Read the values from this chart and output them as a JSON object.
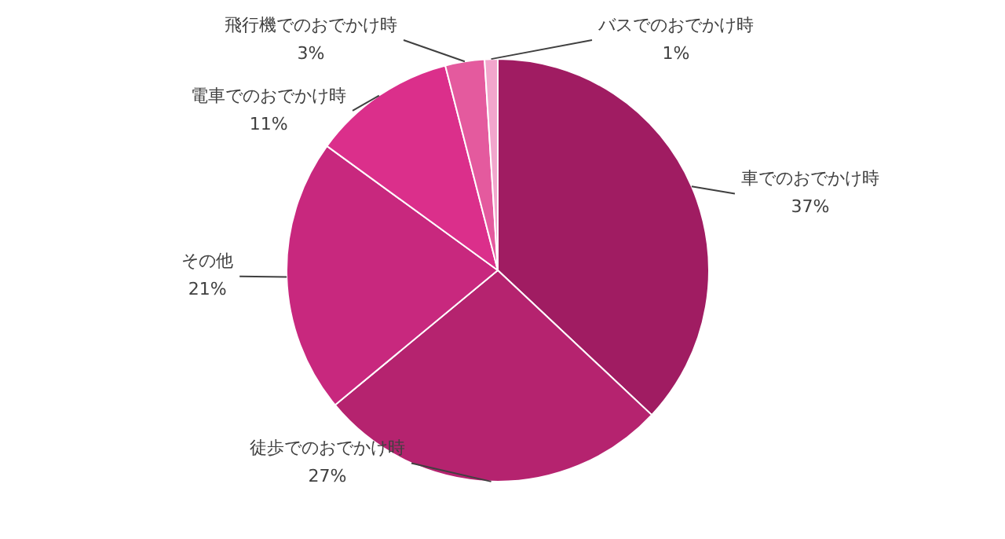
{
  "chart_data": {
    "type": "pie",
    "categories": [
      "車でのおでかけ時",
      "徒歩でのおでかけ時",
      "その他",
      "電車でのおでかけ時",
      "飛行機でのおでかけ時",
      "バスでのおでかけ時"
    ],
    "values": [
      37,
      27,
      21,
      11,
      3,
      1
    ],
    "colors": [
      "#a01c62",
      "#b5236f",
      "#c8287e",
      "#db2f8b",
      "#e45a9e",
      "#f2a5cc"
    ],
    "value_labels": [
      "37%",
      "27%",
      "21%",
      "11%",
      "3%",
      "1%"
    ],
    "legend": false
  }
}
